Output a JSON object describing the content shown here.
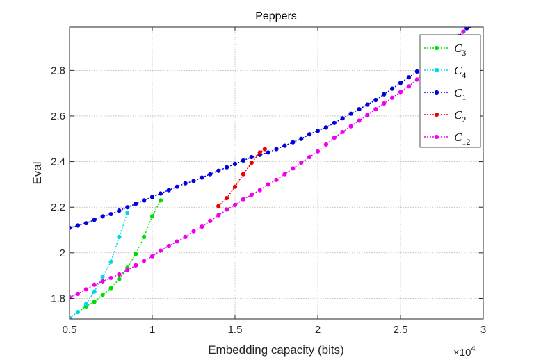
{
  "chart_data": {
    "type": "line",
    "title": "Peppers",
    "xlabel": "Embedding capacity (bits)",
    "ylabel": "Eval",
    "x_multiplier_base": "×10",
    "x_multiplier_exp": "4",
    "xlim": [
      0.5,
      3.0
    ],
    "ylim": [
      1.71,
      2.99
    ],
    "x_ticks": [
      0.5,
      1,
      1.5,
      2,
      2.5,
      3
    ],
    "x_tick_labels": [
      "0.5",
      "1",
      "1.5",
      "2",
      "2.5",
      "3"
    ],
    "y_ticks": [
      1.8,
      2.0,
      2.2,
      2.4,
      2.6,
      2.8
    ],
    "y_tick_labels": [
      "1.8",
      "2",
      "2.2",
      "2.4",
      "2.6",
      "2.8"
    ],
    "grid": true,
    "legend_position": "top-right",
    "series": [
      {
        "legend_letter": "C",
        "legend_sub": "3",
        "color": "#00dd00",
        "x": [
          0.5,
          0.6,
          0.65,
          0.7,
          0.75,
          0.8,
          0.85,
          0.9,
          0.95,
          1.0,
          1.05
        ],
        "y": [
          1.715,
          1.765,
          1.785,
          1.815,
          1.845,
          1.885,
          1.935,
          1.995,
          2.07,
          2.16,
          2.23
        ]
      },
      {
        "legend_letter": "C",
        "legend_sub": "4",
        "color": "#00d8e8",
        "x": [
          0.5,
          0.55,
          0.6,
          0.65,
          0.7,
          0.75,
          0.8,
          0.85
        ],
        "y": [
          1.715,
          1.74,
          1.775,
          1.83,
          1.895,
          1.96,
          2.07,
          2.175
        ]
      },
      {
        "legend_letter": "C",
        "legend_sub": "1",
        "color": "#0000dd",
        "x": [
          0.5,
          0.55,
          0.6,
          0.65,
          0.7,
          0.75,
          0.8,
          0.85,
          0.9,
          0.95,
          1.0,
          1.05,
          1.1,
          1.15,
          1.2,
          1.25,
          1.3,
          1.35,
          1.4,
          1.45,
          1.5,
          1.55,
          1.6,
          1.65,
          1.7,
          1.75,
          1.8,
          1.85,
          1.9,
          1.95,
          2.0,
          2.05,
          2.1,
          2.15,
          2.2,
          2.25,
          2.3,
          2.35,
          2.4,
          2.45,
          2.5,
          2.55,
          2.6,
          2.65,
          2.7,
          2.75,
          2.8,
          2.85,
          2.9,
          2.92
        ],
        "y": [
          2.11,
          2.12,
          2.13,
          2.145,
          2.16,
          2.17,
          2.185,
          2.2,
          2.215,
          2.23,
          2.245,
          2.26,
          2.275,
          2.29,
          2.305,
          2.315,
          2.33,
          2.345,
          2.36,
          2.375,
          2.39,
          2.405,
          2.42,
          2.43,
          2.44,
          2.455,
          2.47,
          2.485,
          2.5,
          2.52,
          2.535,
          2.55,
          2.57,
          2.59,
          2.61,
          2.63,
          2.65,
          2.67,
          2.695,
          2.72,
          2.745,
          2.77,
          2.795,
          2.82,
          2.85,
          2.88,
          2.915,
          2.95,
          2.985,
          2.995
        ]
      },
      {
        "legend_letter": "C",
        "legend_sub": "2",
        "color": "#ee0000",
        "x": [
          1.4,
          1.45,
          1.5,
          1.55,
          1.6,
          1.65,
          1.68
        ],
        "y": [
          2.205,
          2.24,
          2.29,
          2.345,
          2.395,
          2.44,
          2.455
        ]
      },
      {
        "legend_letter": "C",
        "legend_sub": "12",
        "color": "#ee00ee",
        "x": [
          0.5,
          0.55,
          0.6,
          0.65,
          0.7,
          0.75,
          0.8,
          0.85,
          0.9,
          0.95,
          1.0,
          1.05,
          1.1,
          1.15,
          1.2,
          1.25,
          1.3,
          1.35,
          1.4,
          1.45,
          1.5,
          1.55,
          1.6,
          1.65,
          1.7,
          1.75,
          1.8,
          1.85,
          1.9,
          1.95,
          2.0,
          2.05,
          2.1,
          2.15,
          2.2,
          2.25,
          2.3,
          2.35,
          2.4,
          2.45,
          2.5,
          2.55,
          2.6,
          2.65,
          2.7,
          2.75,
          2.8,
          2.85,
          2.88
        ],
        "y": [
          1.805,
          1.82,
          1.84,
          1.86,
          1.875,
          1.89,
          1.905,
          1.925,
          1.945,
          1.965,
          1.985,
          2.01,
          2.03,
          2.05,
          2.07,
          2.095,
          2.115,
          2.14,
          2.165,
          2.19,
          2.21,
          2.235,
          2.255,
          2.275,
          2.3,
          2.32,
          2.345,
          2.37,
          2.395,
          2.42,
          2.445,
          2.475,
          2.505,
          2.53,
          2.555,
          2.58,
          2.605,
          2.63,
          2.655,
          2.68,
          2.705,
          2.73,
          2.76,
          2.79,
          2.82,
          2.855,
          2.89,
          2.935,
          2.97
        ]
      }
    ]
  }
}
